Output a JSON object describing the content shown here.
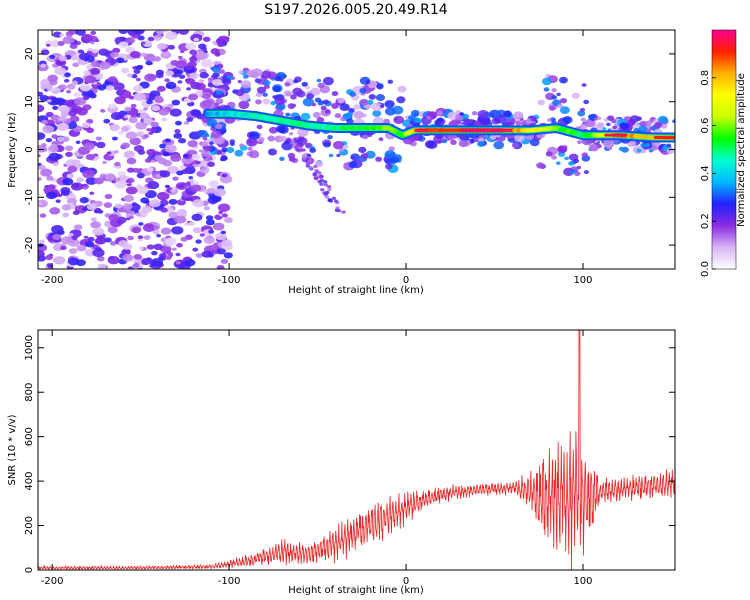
{
  "title": "S197.2026.005.20.49.R14",
  "chart_data": [
    {
      "type": "heatmap",
      "name": "spectrogram",
      "xlabel": "Height of straight line (km)",
      "ylabel": "Frequency (Hz)",
      "xlim": [
        -208,
        152
      ],
      "ylim": [
        -25,
        25
      ],
      "xticks": [
        -200,
        -100,
        0,
        100
      ],
      "yticks": [
        -20,
        -10,
        0,
        10,
        20
      ],
      "colorbar": {
        "label": "Normalized spectral amplitude",
        "range": [
          0,
          1
        ],
        "ticks": [
          0.0,
          0.2,
          0.4,
          0.6,
          0.8
        ],
        "colormap": [
          "#ffffff",
          "#d8b4f6",
          "#8a2be2",
          "#2222ff",
          "#00b8ff",
          "#00ffd0",
          "#00ff00",
          "#c8ff00",
          "#ffff00",
          "#ffb000",
          "#ff2000",
          "#ff0090"
        ]
      },
      "ridge": [
        {
          "x": -112,
          "f": 7.5,
          "a": 0.35
        },
        {
          "x": -100,
          "f": 7.5,
          "a": 0.4
        },
        {
          "x": -85,
          "f": 7.0,
          "a": 0.45
        },
        {
          "x": -70,
          "f": 6.0,
          "a": 0.5
        },
        {
          "x": -55,
          "f": 5.0,
          "a": 0.45
        },
        {
          "x": -40,
          "f": 4.5,
          "a": 0.5
        },
        {
          "x": -25,
          "f": 4.5,
          "a": 0.55
        },
        {
          "x": -10,
          "f": 4.5,
          "a": 0.6
        },
        {
          "x": -2,
          "f": 3.0,
          "a": 0.55
        },
        {
          "x": 5,
          "f": 4.0,
          "a": 0.85
        },
        {
          "x": 25,
          "f": 4.0,
          "a": 0.9
        },
        {
          "x": 50,
          "f": 4.0,
          "a": 0.95
        },
        {
          "x": 70,
          "f": 4.0,
          "a": 0.75
        },
        {
          "x": 85,
          "f": 4.5,
          "a": 0.6
        },
        {
          "x": 100,
          "f": 3.0,
          "a": 0.5
        },
        {
          "x": 120,
          "f": 3.0,
          "a": 0.85
        },
        {
          "x": 140,
          "f": 2.5,
          "a": 0.8
        },
        {
          "x": 152,
          "f": 2.5,
          "a": 0.8
        }
      ]
    },
    {
      "type": "line",
      "name": "snr",
      "xlabel": "Height of straight line (km)",
      "ylabel": "SNR (10 * v/v)",
      "xlim": [
        -208,
        152
      ],
      "ylim": [
        0,
        1080
      ],
      "xticks": [
        -200,
        -100,
        0,
        100
      ],
      "yticks": [
        0,
        200,
        400,
        600,
        800,
        1000
      ],
      "color": "#ee2222",
      "envelope": [
        {
          "x": -208,
          "base": 10,
          "amp": 8
        },
        {
          "x": -150,
          "base": 10,
          "amp": 8
        },
        {
          "x": -110,
          "base": 15,
          "amp": 10
        },
        {
          "x": -90,
          "base": 40,
          "amp": 30
        },
        {
          "x": -70,
          "base": 80,
          "amp": 60
        },
        {
          "x": -55,
          "base": 70,
          "amp": 50
        },
        {
          "x": -40,
          "base": 120,
          "amp": 80
        },
        {
          "x": -25,
          "base": 180,
          "amp": 100
        },
        {
          "x": -10,
          "base": 240,
          "amp": 90
        },
        {
          "x": 5,
          "base": 300,
          "amp": 60
        },
        {
          "x": 20,
          "base": 340,
          "amp": 40
        },
        {
          "x": 40,
          "base": 360,
          "amp": 30
        },
        {
          "x": 60,
          "base": 370,
          "amp": 30
        },
        {
          "x": 70,
          "base": 360,
          "amp": 80
        },
        {
          "x": 78,
          "base": 330,
          "amp": 220
        },
        {
          "x": 88,
          "base": 330,
          "amp": 300
        },
        {
          "x": 96,
          "base": 340,
          "amp": 360
        },
        {
          "x": 102,
          "base": 330,
          "amp": 250
        },
        {
          "x": 110,
          "base": 350,
          "amp": 60
        },
        {
          "x": 130,
          "base": 370,
          "amp": 60
        },
        {
          "x": 152,
          "base": 390,
          "amp": 70
        }
      ],
      "peak": {
        "x": 98,
        "y": 1080
      }
    }
  ]
}
